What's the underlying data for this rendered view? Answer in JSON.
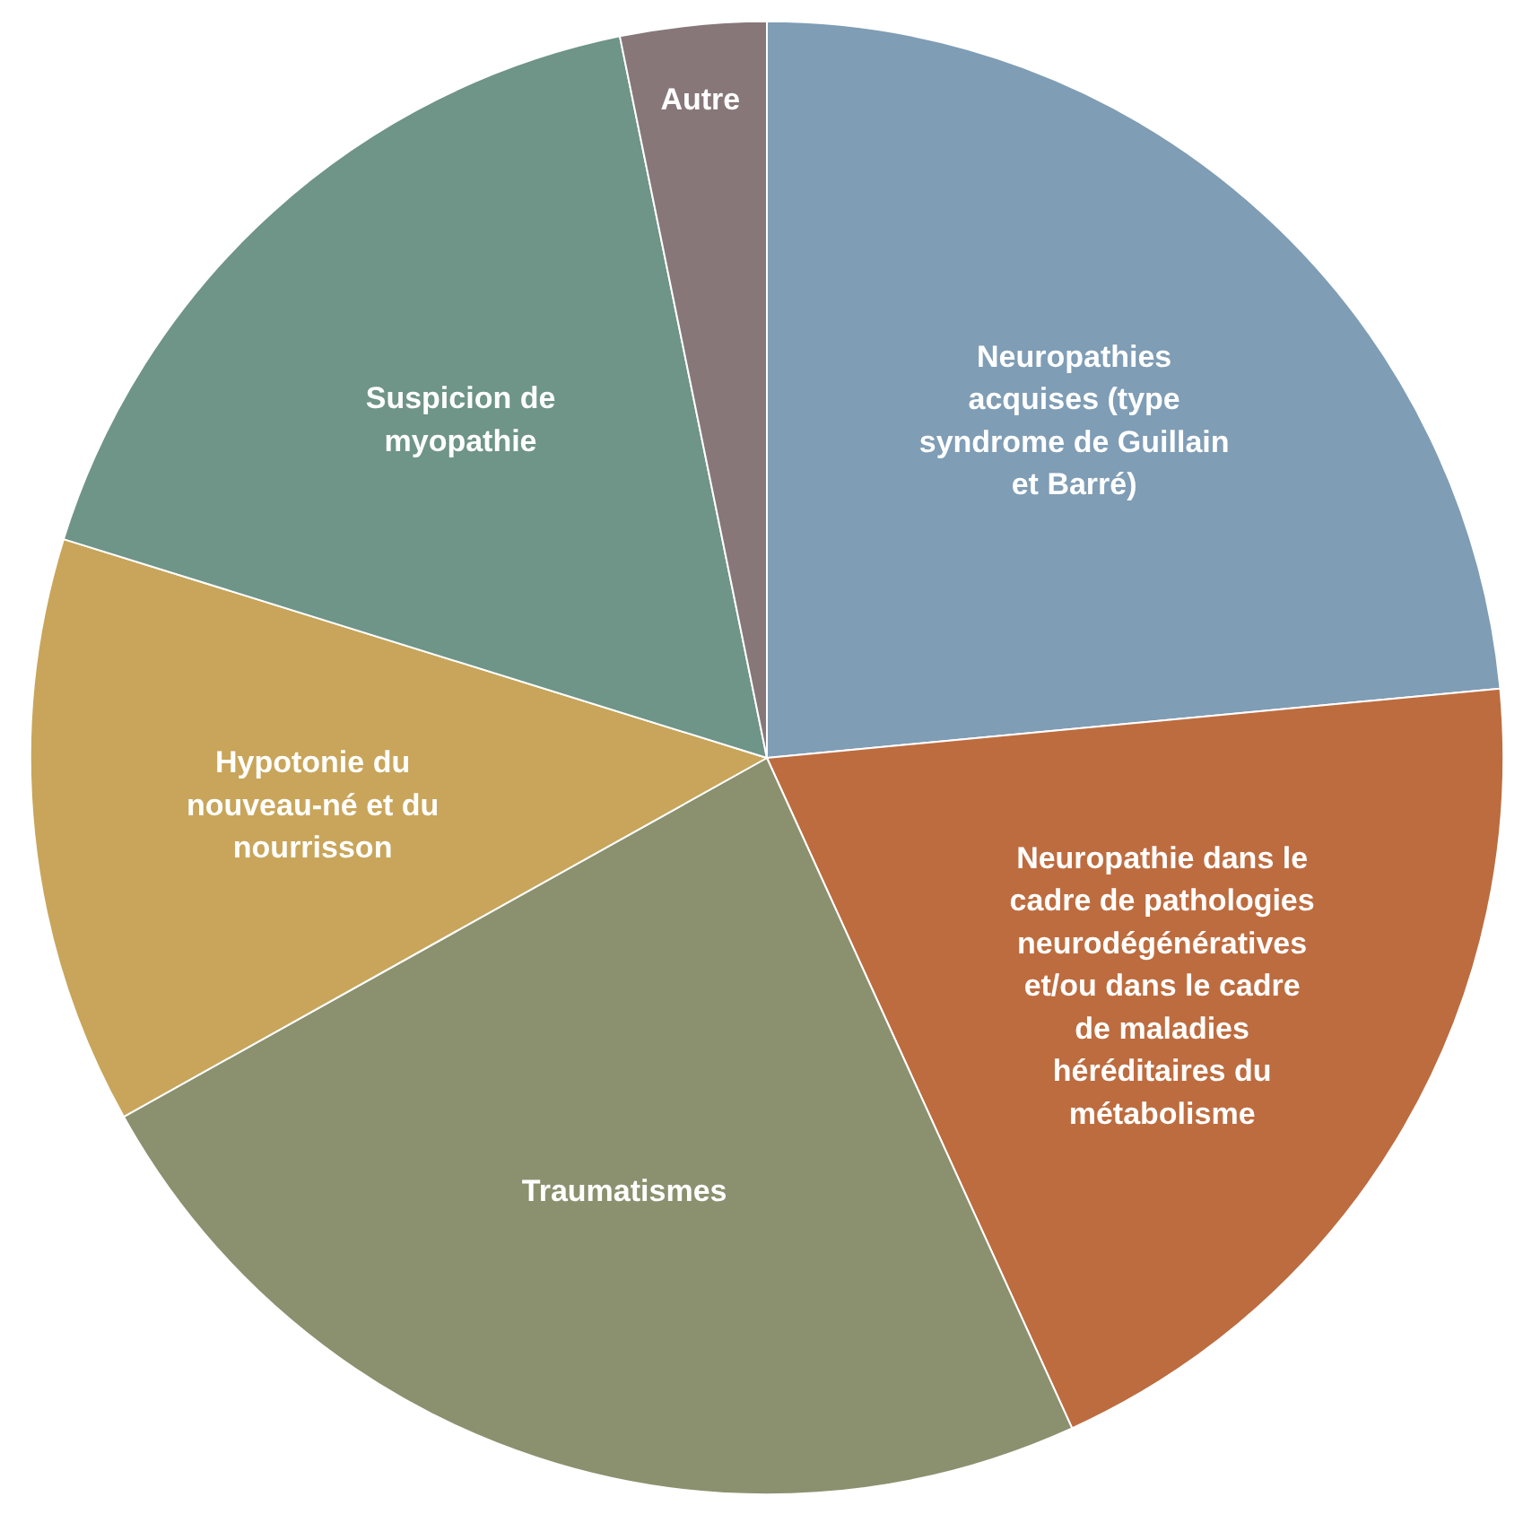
{
  "chart_data": {
    "type": "pie",
    "categories": [
      "Neuropathies acquises (type syndrome de Guillain et Barré)",
      "Neuropathie dans le cadre de pathologies neurodégénératives et/ou dans le cadre de maladies héréditaires du métabolisme",
      "Traumatismes",
      "Hypotonie du nouveau-né et du nourrisson",
      "Suspicion de myopathie",
      "Autre"
    ],
    "values": [
      23.5,
      19.7,
      23.7,
      12.9,
      17.0,
      3.2
    ],
    "colors": [
      "#7f9db5",
      "#bd6c3f",
      "#8b916f",
      "#c8a55a",
      "#6f9488",
      "#877779"
    ],
    "legend": false
  }
}
